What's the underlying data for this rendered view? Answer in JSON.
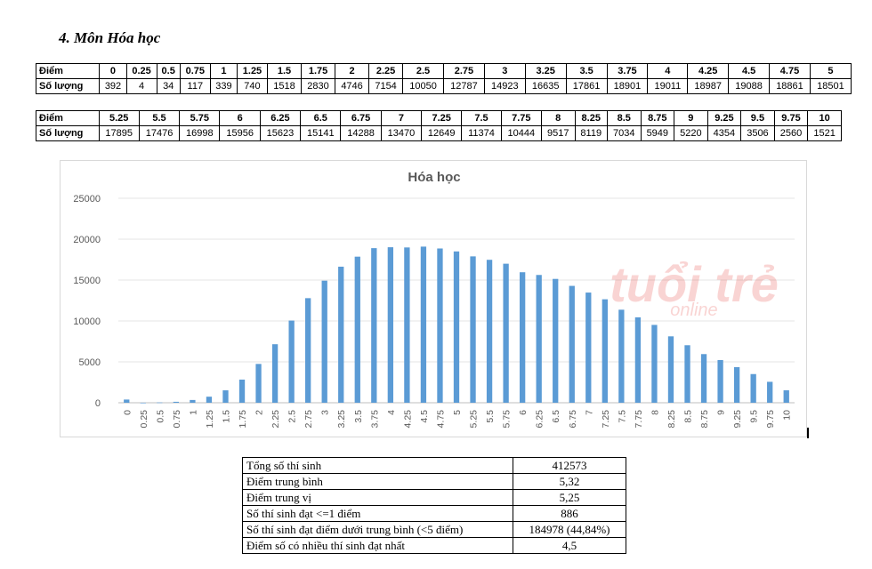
{
  "heading": "4.  Môn Hóa học",
  "score_tables": {
    "label_score": "Điểm",
    "label_count": "Số lượng",
    "part1": {
      "scores": [
        "0",
        "0.25",
        "0.5",
        "0.75",
        "1",
        "1.25",
        "1.5",
        "1.75",
        "2",
        "2.25",
        "2.5",
        "2.75",
        "3",
        "3.25",
        "3.5",
        "3.75",
        "4",
        "4.25",
        "4.5",
        "4.75",
        "5"
      ],
      "counts": [
        "392",
        "4",
        "34",
        "117",
        "339",
        "740",
        "1518",
        "2830",
        "4746",
        "7154",
        "10050",
        "12787",
        "14923",
        "16635",
        "17861",
        "18901",
        "19011",
        "18987",
        "19088",
        "18861",
        "18501"
      ]
    },
    "part2": {
      "scores": [
        "5.25",
        "5.5",
        "5.75",
        "6",
        "6.25",
        "6.5",
        "6.75",
        "7",
        "7.25",
        "7.5",
        "7.75",
        "8",
        "8.25",
        "8.5",
        "8.75",
        "9",
        "9.25",
        "9.5",
        "9.75",
        "10"
      ],
      "counts": [
        "17895",
        "17476",
        "16998",
        "15956",
        "15623",
        "15141",
        "14288",
        "13470",
        "12649",
        "11374",
        "10444",
        "9517",
        "8119",
        "7034",
        "5949",
        "5220",
        "4354",
        "3506",
        "2560",
        "1521"
      ]
    }
  },
  "watermark": {
    "line1": "tuổi trẻ",
    "line2": "online",
    "color": "#e8413c"
  },
  "chart_data": {
    "type": "bar",
    "title": "Hóa học",
    "xlabel": "",
    "ylabel": "",
    "categories": [
      "0",
      "0.25",
      "0.5",
      "0.75",
      "1",
      "1.25",
      "1.5",
      "1.75",
      "2",
      "2.25",
      "2.5",
      "2.75",
      "3",
      "3.25",
      "3.5",
      "3.75",
      "4",
      "4.25",
      "4.5",
      "4.75",
      "5",
      "5.25",
      "5.5",
      "5.75",
      "6",
      "6.25",
      "6.5",
      "6.75",
      "7",
      "7.25",
      "7.5",
      "7.75",
      "8",
      "8.25",
      "8.5",
      "8.75",
      "9",
      "9.25",
      "9.5",
      "9.75",
      "10"
    ],
    "values": [
      392,
      4,
      34,
      117,
      339,
      740,
      1518,
      2830,
      4746,
      7154,
      10050,
      12787,
      14923,
      16635,
      17861,
      18901,
      19011,
      18987,
      19088,
      18861,
      18501,
      17895,
      17476,
      16998,
      15956,
      15623,
      15141,
      14288,
      13470,
      12649,
      11374,
      10444,
      9517,
      8119,
      7034,
      5949,
      5220,
      4354,
      3506,
      2560,
      1521
    ],
    "ylim": [
      0,
      25000
    ],
    "yticks": [
      0,
      5000,
      10000,
      15000,
      20000,
      25000
    ],
    "grid": true,
    "legend": "none",
    "bar_color": "#5b9bd5"
  },
  "summary": [
    {
      "label": "Tổng số thí sinh",
      "value": "412573"
    },
    {
      "label": "Điểm trung bình",
      "value": "5,32"
    },
    {
      "label": "Điểm trung vị",
      "value": "5,25"
    },
    {
      "label": "Số thí sinh đạt <=1 điểm",
      "value": "886"
    },
    {
      "label": "Số thí sinh đạt điểm dưới trung bình (<5 điểm)",
      "value": "184978 (44,84%)"
    },
    {
      "label": "Điểm số có nhiều thí sinh đạt nhất",
      "value": "4,5"
    }
  ]
}
